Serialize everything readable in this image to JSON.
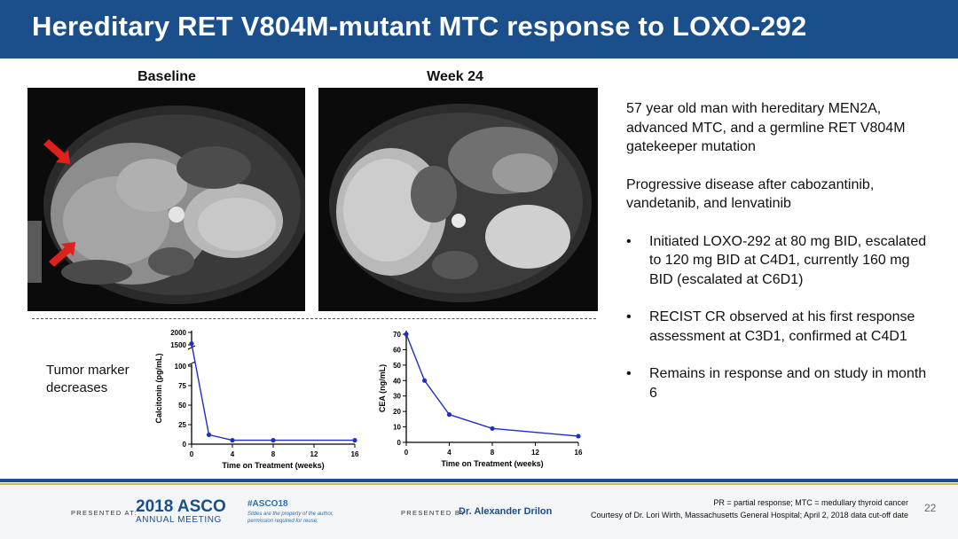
{
  "slide": {
    "title": "Hereditary RET V804M-mutant MTC response to LOXO-292",
    "page_number": "22"
  },
  "images": {
    "baseline_label": "Baseline",
    "week24_label": "Week 24"
  },
  "side_label": [
    "Tumor marker",
    "decreases"
  ],
  "text_panel": {
    "paragraphs": [
      "57 year old man with hereditary MEN2A, advanced MTC, and a germline RET V804M gatekeeper mutation",
      "Progressive disease after cabozantinib, vandetanib, and lenvatinib"
    ],
    "bullets": [
      "Initiated LOXO-292 at 80 mg BID, escalated to 120 mg BID at C4D1, currently 160 mg BID (escalated at C6D1)",
      "RECIST CR observed at his first response assessment at C3D1, confirmed at C4D1",
      "Remains in response and on study in month 6"
    ],
    "bullet_glyph": "•"
  },
  "footer": {
    "presented_at": "PRESENTED AT:",
    "asco_year": "2018 ASCO",
    "asco_sub": "ANNUAL MEETING",
    "hashtag": "#ASCO18",
    "disclaimer": "Slides are the property of the author, permission required for reuse.",
    "presented_by": "PRESENTED BY:",
    "presenter": "Dr. Alexander Drilon",
    "footnote1": "PR = partial response; MTC = medullary thyroid cancer",
    "footnote2": "Courtesy of Dr. Lori Wirth, Massachusetts General Hospital; April 2, 2018 data cut-off date"
  },
  "colors": {
    "title_bar": "#1a4f8b",
    "series": "#1f2fbf",
    "accent_gold": "#c9c04b",
    "arrow": "#e0201b"
  },
  "chart_data": [
    {
      "type": "line",
      "title": "",
      "xlabel": "Time on Treatment (weeks)",
      "ylabel": "Calcitonin (pg/mL)",
      "x_ticks": [
        0,
        4,
        8,
        12,
        16
      ],
      "y_ticks_lower": [
        0,
        25,
        50,
        75,
        100
      ],
      "y_ticks_upper": [
        1500,
        2000
      ],
      "y_axis_break": [
        100,
        1500
      ],
      "xlim": [
        0,
        16
      ],
      "x": [
        0,
        1.7,
        4,
        8,
        16
      ],
      "values": [
        1550,
        12,
        5,
        5,
        5
      ],
      "grid": false,
      "legend": "none"
    },
    {
      "type": "line",
      "title": "",
      "xlabel": "Time on Treatment (weeks)",
      "ylabel": "CEA (ng/mL)",
      "x_ticks": [
        0,
        4,
        8,
        12,
        16
      ],
      "y_ticks": [
        0,
        10,
        20,
        30,
        40,
        50,
        60,
        70
      ],
      "xlim": [
        0,
        16
      ],
      "ylim": [
        0,
        70
      ],
      "x": [
        0,
        1.7,
        4,
        8,
        16
      ],
      "values": [
        70,
        40,
        18,
        9,
        4
      ],
      "grid": false,
      "legend": "none"
    }
  ]
}
